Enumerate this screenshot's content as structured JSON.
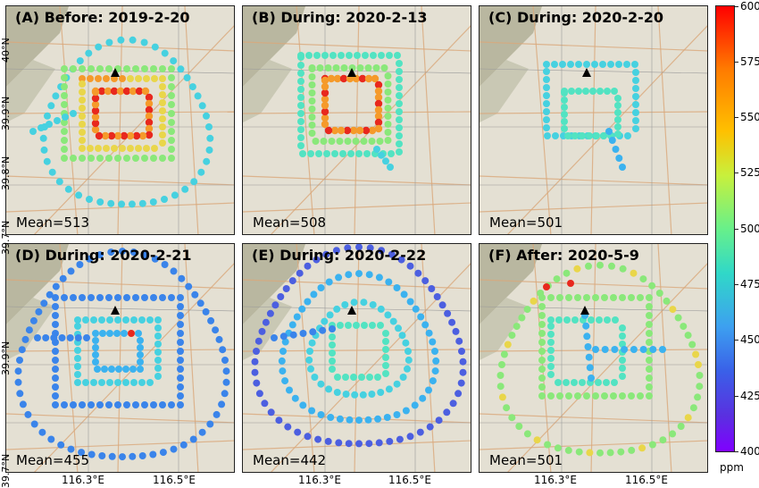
{
  "colorbar": {
    "ticks": [
      "600",
      "575",
      "550",
      "525",
      "500",
      "475",
      "450",
      "425",
      "400"
    ],
    "unit": "ppm",
    "range": [
      400,
      600
    ]
  },
  "axes": {
    "y_ticks": [
      "40°N",
      "39.9°N",
      "39.8°N",
      "39.7°N"
    ],
    "x_ticks": [
      "116.3°E",
      "116.5°E"
    ]
  },
  "marker": "triangle-marker",
  "panels": [
    {
      "title": "(A) Before: 2019-2-20",
      "mean": "Mean=513",
      "mean_value": 513
    },
    {
      "title": "(B) During: 2020-2-13",
      "mean": "Mean=508",
      "mean_value": 508
    },
    {
      "title": "(C) During: 2020-2-20",
      "mean": "Mean=501",
      "mean_value": 501
    },
    {
      "title": "(D) During: 2020-2-21",
      "mean": "Mean=455",
      "mean_value": 455
    },
    {
      "title": "(E) During: 2020-2-22",
      "mean": "Mean=442",
      "mean_value": 442
    },
    {
      "title": "(F) After: 2020-5-9",
      "mean": "Mean=501",
      "mean_value": 501
    }
  ],
  "colors": {
    "red": "#e8281e",
    "orange": "#f59a2a",
    "yellow": "#e9d64a",
    "green": "#8ae87a",
    "teal": "#52e3c2",
    "cyan": "#46d1e0",
    "lightblue": "#3bb2ef",
    "blue": "#3a84ea",
    "indigo": "#4c5fe0"
  }
}
